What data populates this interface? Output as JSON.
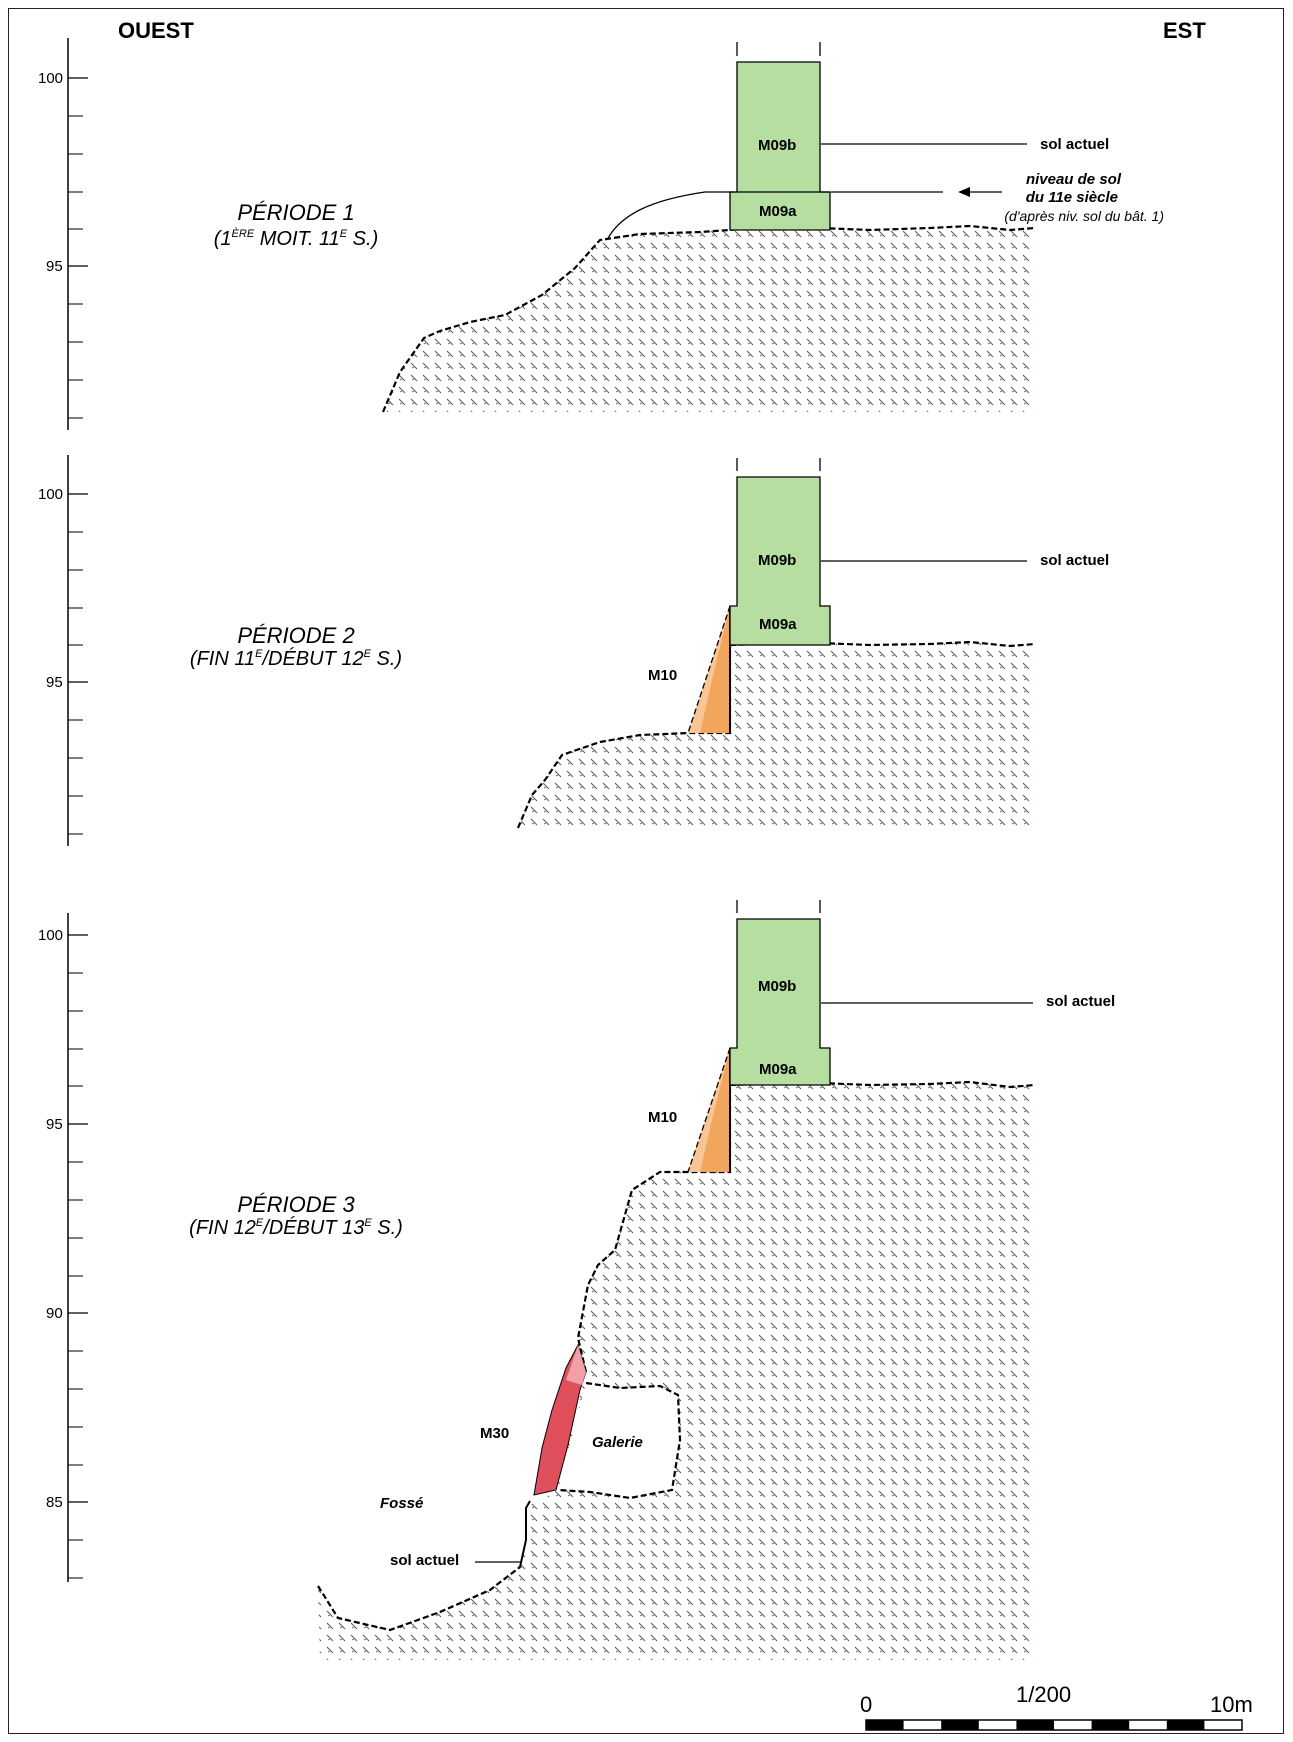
{
  "header": {
    "west": "OUEST",
    "east": "EST"
  },
  "colors": {
    "wall_green": "#b5dea0",
    "m10_orange": "#f2a55c",
    "m10_light": "#f8c99a",
    "m30_red": "#e0505c",
    "m30_light": "#f0a0a6",
    "hatch": "#555555"
  },
  "panels": [
    {
      "title": "PÉRIODE 1",
      "subtitle": {
        "p1": "(1",
        "sup1": "ÈRE",
        "p2": " MOIT. 11",
        "sup2": "E",
        "p3": " S.)"
      },
      "ticks": [
        "100",
        "95"
      ],
      "labels": {
        "m09b": "M09b",
        "m09a": "M09a",
        "sol_actuel": "sol actuel",
        "niveau_line1": "niveau de sol",
        "niveau_line2": "du 11e siècle",
        "niveau_note": "(d'après niv. sol du bât. 1)"
      }
    },
    {
      "title": "PÉRIODE 2",
      "subtitle": {
        "p1": "(FIN 11",
        "sup1": "E",
        "p2": "/DÉBUT 12",
        "sup2": "E",
        "p3": " S.)"
      },
      "ticks": [
        "100",
        "95"
      ],
      "labels": {
        "m09b": "M09b",
        "m09a": "M09a",
        "sol_actuel": "sol actuel",
        "m10": "M10"
      }
    },
    {
      "title": "PÉRIODE 3",
      "subtitle": {
        "p1": "(FIN 12",
        "sup1": "E",
        "p2": "/DÉBUT 13",
        "sup2": "E",
        "p3": " S.)"
      },
      "ticks": [
        "100",
        "95",
        "90",
        "85"
      ],
      "labels": {
        "m09b": "M09b",
        "m09a": "M09a",
        "sol_actuel": "sol actuel",
        "m10": "M10",
        "m30": "M30",
        "galerie": "Galerie",
        "fosse": "Fossé",
        "sol_actuel_fosse": "sol actuel"
      }
    }
  ],
  "scale": {
    "start": "0",
    "ratio": "1/200",
    "end": "10m"
  }
}
